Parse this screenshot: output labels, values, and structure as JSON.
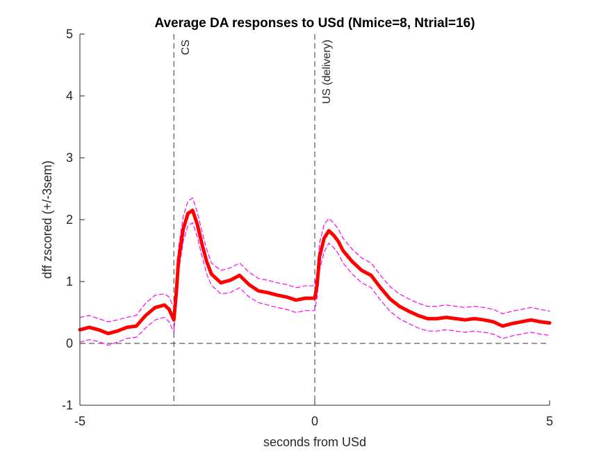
{
  "chart_data": {
    "type": "line",
    "title": "Average DA responses to USd (Nmice=8, Ntrial=16)",
    "xlabel": "seconds from USd",
    "ylabel": "dff zscored (+/-3sem)",
    "xlim": [
      -5,
      5
    ],
    "ylim": [
      -1,
      5
    ],
    "xticks": [
      -5,
      0,
      5
    ],
    "yticks": [
      -1,
      0,
      1,
      2,
      3,
      4,
      5
    ],
    "xtick_labels": [
      "-5",
      "0",
      "5"
    ],
    "ytick_labels": [
      "-1",
      "0",
      "1",
      "2",
      "3",
      "4",
      "5"
    ],
    "grid": false,
    "reference_lines": [
      {
        "axis": "x",
        "value": -3,
        "label": "CS"
      },
      {
        "axis": "x",
        "value": 0,
        "label": "US (delivery)"
      },
      {
        "axis": "y",
        "value": 0,
        "label": ""
      }
    ],
    "series": [
      {
        "role": "mean",
        "color": "#ff0000",
        "x": [
          -5.0,
          -4.8,
          -4.6,
          -4.4,
          -4.2,
          -4.0,
          -3.8,
          -3.6,
          -3.4,
          -3.2,
          -3.1,
          -3.0,
          -2.95,
          -2.9,
          -2.8,
          -2.7,
          -2.6,
          -2.5,
          -2.4,
          -2.3,
          -2.2,
          -2.0,
          -1.8,
          -1.6,
          -1.4,
          -1.2,
          -1.0,
          -0.8,
          -0.6,
          -0.4,
          -0.2,
          0.0,
          0.05,
          0.1,
          0.2,
          0.3,
          0.4,
          0.5,
          0.6,
          0.8,
          1.0,
          1.2,
          1.4,
          1.6,
          1.8,
          2.0,
          2.2,
          2.4,
          2.6,
          2.8,
          3.0,
          3.2,
          3.4,
          3.6,
          3.8,
          4.0,
          4.2,
          4.4,
          4.6,
          4.8,
          5.0
        ],
        "y": [
          0.22,
          0.26,
          0.22,
          0.16,
          0.2,
          0.26,
          0.28,
          0.45,
          0.58,
          0.62,
          0.55,
          0.38,
          0.8,
          1.35,
          1.85,
          2.1,
          2.15,
          1.92,
          1.6,
          1.32,
          1.12,
          0.98,
          1.02,
          1.1,
          0.95,
          0.85,
          0.82,
          0.78,
          0.75,
          0.7,
          0.73,
          0.73,
          0.95,
          1.4,
          1.7,
          1.82,
          1.75,
          1.65,
          1.5,
          1.32,
          1.18,
          1.1,
          0.9,
          0.72,
          0.6,
          0.52,
          0.45,
          0.4,
          0.4,
          0.42,
          0.4,
          0.38,
          0.4,
          0.38,
          0.35,
          0.28,
          0.32,
          0.35,
          0.38,
          0.35,
          0.33
        ]
      },
      {
        "role": "upper bound (+3sem)",
        "color": "#ff00ff",
        "x": [
          -5.0,
          -4.8,
          -4.6,
          -4.4,
          -4.2,
          -4.0,
          -3.8,
          -3.6,
          -3.4,
          -3.2,
          -3.1,
          -3.0,
          -2.95,
          -2.9,
          -2.8,
          -2.7,
          -2.6,
          -2.5,
          -2.4,
          -2.3,
          -2.2,
          -2.0,
          -1.8,
          -1.6,
          -1.4,
          -1.2,
          -1.0,
          -0.8,
          -0.6,
          -0.4,
          -0.2,
          0.0,
          0.05,
          0.1,
          0.2,
          0.3,
          0.4,
          0.5,
          0.6,
          0.8,
          1.0,
          1.2,
          1.4,
          1.6,
          1.8,
          2.0,
          2.2,
          2.4,
          2.6,
          2.8,
          3.0,
          3.2,
          3.4,
          3.6,
          3.8,
          4.0,
          4.2,
          4.4,
          4.6,
          4.8,
          5.0
        ],
        "y": [
          0.42,
          0.45,
          0.4,
          0.35,
          0.38,
          0.42,
          0.45,
          0.65,
          0.78,
          0.8,
          0.75,
          0.58,
          0.98,
          1.55,
          2.05,
          2.3,
          2.35,
          2.12,
          1.8,
          1.52,
          1.3,
          1.18,
          1.22,
          1.3,
          1.15,
          1.05,
          1.02,
          0.98,
          0.95,
          0.9,
          0.93,
          0.93,
          1.15,
          1.62,
          1.92,
          2.02,
          1.95,
          1.85,
          1.7,
          1.52,
          1.38,
          1.3,
          1.1,
          0.92,
          0.8,
          0.72,
          0.65,
          0.6,
          0.6,
          0.62,
          0.6,
          0.58,
          0.6,
          0.58,
          0.55,
          0.48,
          0.52,
          0.55,
          0.58,
          0.55,
          0.52
        ]
      },
      {
        "role": "lower bound (-3sem)",
        "color": "#ff00ff",
        "x": [
          -5.0,
          -4.8,
          -4.6,
          -4.4,
          -4.2,
          -4.0,
          -3.8,
          -3.6,
          -3.4,
          -3.2,
          -3.1,
          -3.0,
          -2.95,
          -2.9,
          -2.8,
          -2.7,
          -2.6,
          -2.5,
          -2.4,
          -2.3,
          -2.2,
          -2.0,
          -1.8,
          -1.6,
          -1.4,
          -1.2,
          -1.0,
          -0.8,
          -0.6,
          -0.4,
          -0.2,
          0.0,
          0.05,
          0.1,
          0.2,
          0.3,
          0.4,
          0.5,
          0.6,
          0.8,
          1.0,
          1.2,
          1.4,
          1.6,
          1.8,
          2.0,
          2.2,
          2.4,
          2.6,
          2.8,
          3.0,
          3.2,
          3.4,
          3.6,
          3.8,
          4.0,
          4.2,
          4.4,
          4.6,
          4.8,
          5.0
        ],
        "y": [
          0.02,
          0.06,
          0.03,
          -0.03,
          0.02,
          0.08,
          0.1,
          0.25,
          0.38,
          0.42,
          0.35,
          0.18,
          0.62,
          1.15,
          1.65,
          1.9,
          1.95,
          1.72,
          1.4,
          1.12,
          0.94,
          0.8,
          0.82,
          0.9,
          0.75,
          0.66,
          0.62,
          0.58,
          0.55,
          0.5,
          0.53,
          0.53,
          0.75,
          1.18,
          1.48,
          1.62,
          1.55,
          1.45,
          1.3,
          1.12,
          0.98,
          0.9,
          0.7,
          0.52,
          0.4,
          0.32,
          0.25,
          0.2,
          0.2,
          0.22,
          0.2,
          0.18,
          0.2,
          0.18,
          0.15,
          0.08,
          0.12,
          0.15,
          0.18,
          0.15,
          0.13
        ]
      }
    ]
  }
}
